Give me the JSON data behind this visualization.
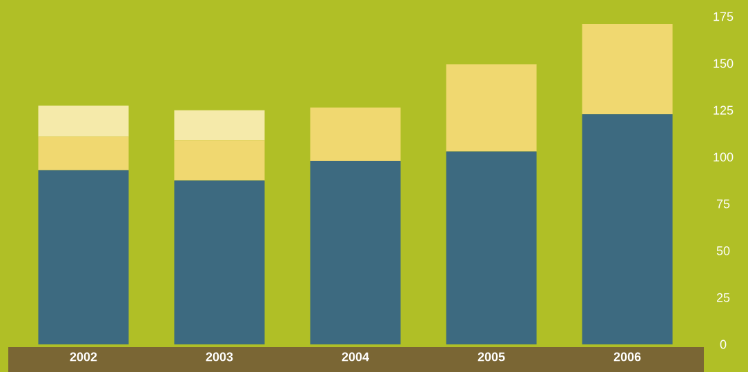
{
  "chart_data": {
    "type": "bar",
    "stacked": true,
    "categories": [
      "2002",
      "2003",
      "2004",
      "2005",
      "2006"
    ],
    "series": [
      {
        "color": "#3d6a80",
        "values": [
          93,
          87.5,
          98,
          103,
          123
        ]
      },
      {
        "color": "#f0d870",
        "values": [
          18,
          21.5,
          28.5,
          46.5,
          48
        ]
      },
      {
        "color": "#f5eaaa",
        "values": [
          16.5,
          16,
          null,
          null,
          null
        ]
      }
    ],
    "ylim": [
      0,
      175
    ],
    "yticks": [
      0,
      25,
      50,
      75,
      100,
      125,
      150,
      175
    ]
  }
}
